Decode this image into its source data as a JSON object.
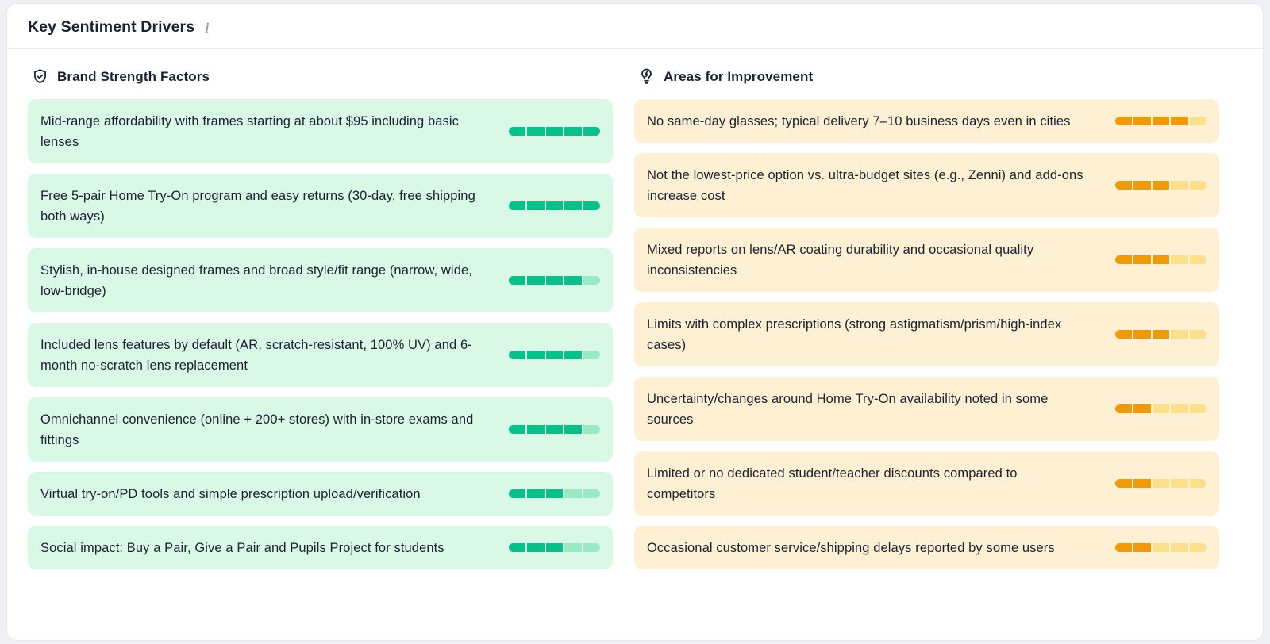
{
  "panel": {
    "title": "Key Sentiment Drivers",
    "info_glyph": "i"
  },
  "colors": {
    "page_bg": "#eef0f3",
    "panel_bg": "#ffffff",
    "panel_border": "#e7e9ee",
    "divider": "#e9ebef",
    "text": "#1b2130",
    "info_icon": "#9aa2ad",
    "positive_bg": "#d9f8e5",
    "positive_fill": "#06c18a",
    "positive_empty": "#9ae9c5",
    "negative_bg": "#fdf0d3",
    "negative_fill": "#f09a09",
    "negative_empty": "#fae08b"
  },
  "columns": [
    {
      "title": "Brand Strength Factors",
      "icon": "shield-check-icon",
      "tone": "positive",
      "items": [
        {
          "text": "Mid-range affordability with frames starting at about $95 including basic lenses",
          "score": 5,
          "max": 5
        },
        {
          "text": "Free 5-pair Home Try-On program and easy returns (30-day, free shipping both ways)",
          "score": 5,
          "max": 5
        },
        {
          "text": "Stylish, in-house designed frames and broad style/fit range (narrow, wide, low-bridge)",
          "score": 4,
          "max": 5
        },
        {
          "text": "Included lens features by default (AR, scratch-resistant, 100% UV) and 6-month no-scratch lens replacement",
          "score": 4,
          "max": 5
        },
        {
          "text": "Omnichannel convenience (online + 200+ stores) with in-store exams and fittings",
          "score": 4,
          "max": 5
        },
        {
          "text": "Virtual try-on/PD tools and simple prescription upload/verification",
          "score": 3,
          "max": 5
        },
        {
          "text": "Social impact: Buy a Pair, Give a Pair and Pupils Project for students",
          "score": 3,
          "max": 5
        }
      ]
    },
    {
      "title": "Areas for Improvement",
      "icon": "lightbulb-icon",
      "tone": "negative",
      "items": [
        {
          "text": "No same-day glasses; typical delivery 7–10 business days even in cities",
          "score": 4,
          "max": 5
        },
        {
          "text": "Not the lowest-price option vs. ultra-budget sites (e.g., Zenni) and add-ons increase cost",
          "score": 3,
          "max": 5
        },
        {
          "text": "Mixed reports on lens/AR coating durability and occasional quality inconsistencies",
          "score": 3,
          "max": 5
        },
        {
          "text": "Limits with complex prescriptions (strong astigmatism/prism/high-index cases)",
          "score": 3,
          "max": 5
        },
        {
          "text": "Uncertainty/changes around Home Try-On availability noted in some sources",
          "score": 2,
          "max": 5
        },
        {
          "text": "Limited or no dedicated student/teacher discounts compared to competitors",
          "score": 2,
          "max": 5
        },
        {
          "text": "Occasional customer service/shipping delays reported by some users",
          "score": 2,
          "max": 5
        }
      ]
    }
  ]
}
